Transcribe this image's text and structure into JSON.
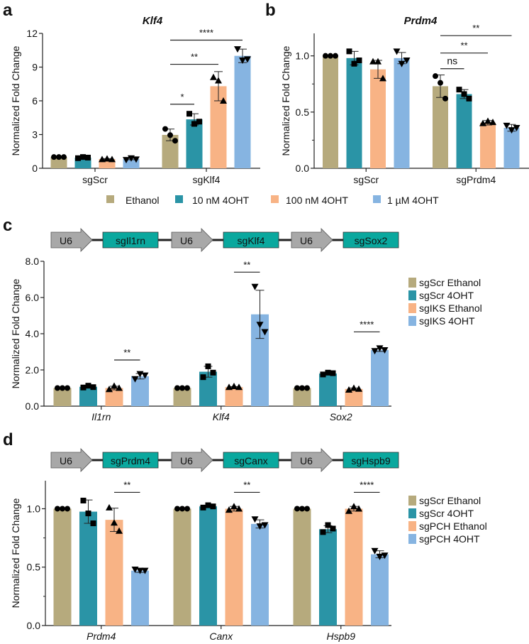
{
  "colors": {
    "c1": "#b6aa7d",
    "c2": "#2a94a6",
    "c3": "#f8b385",
    "c4": "#86b4e1",
    "construct_box": "#0aa89e",
    "construct_arrow": "#a8a8a8"
  },
  "top_legend": [
    "Ethanol",
    "10 nM 4OHT",
    "100 nM 4OHT",
    "1 µM 4OHT"
  ],
  "constructs": {
    "c": {
      "promoter": "U6",
      "guides": [
        "sgIl1rn",
        "sgKlf4",
        "sgSox2"
      ]
    },
    "d": {
      "promoter": "U6",
      "guides": [
        "sgPrdm4",
        "sgCanx",
        "sgHspb9"
      ]
    }
  },
  "chart_data": [
    {
      "panel": "a",
      "type": "bar",
      "title": "Klf4",
      "ylabel": "Normalized Fold Change",
      "xlabel": "",
      "ylim": [
        0,
        12
      ],
      "yticks": [
        "0",
        "3",
        "6",
        "9",
        "12"
      ],
      "ytick_values": [
        0,
        3,
        6,
        9,
        12
      ],
      "categories": [
        "sgScr",
        "sgKlf4"
      ],
      "categories_italic": false,
      "series": [
        {
          "name": "Ethanol",
          "color": "c1",
          "marker": "circle",
          "values": [
            1.0,
            2.97
          ],
          "errors": [
            0.0,
            0.52
          ],
          "points": [
            [
              1,
              1,
              1
            ],
            [
              3.5,
              2.95,
              2.45
            ]
          ]
        },
        {
          "name": "10 nM 4OHT",
          "color": "c2",
          "marker": "square",
          "values": [
            0.95,
            4.35
          ],
          "errors": [
            0.05,
            0.5
          ],
          "points": [
            [
              0.9,
              1.0,
              0.95
            ],
            [
              4.85,
              3.95,
              4.15
            ]
          ]
        },
        {
          "name": "100 nM 4OHT",
          "color": "c3",
          "marker": "triangle",
          "values": [
            0.82,
            7.3
          ],
          "errors": [
            0.04,
            1.3
          ],
          "points": [
            [
              0.8,
              0.85,
              0.8
            ],
            [
              8.1,
              7.8,
              6.0
            ]
          ]
        },
        {
          "name": "1 µM 4OHT",
          "color": "c4",
          "marker": "triangle-down",
          "values": [
            0.82,
            10.0
          ],
          "errors": [
            0.06,
            0.6
          ],
          "points": [
            [
              0.75,
              0.9,
              0.8
            ],
            [
              10.6,
              9.6,
              9.7
            ]
          ]
        }
      ],
      "significance": [
        {
          "group": 1,
          "from": 0,
          "to": 1,
          "y": 5.7,
          "label": "*"
        },
        {
          "group": 1,
          "from": 0,
          "to": 2,
          "y": 9.25,
          "label": "**"
        },
        {
          "group": 1,
          "from": 0,
          "to": 3,
          "y": 11.4,
          "label": "****"
        }
      ],
      "legend": "bottom (shared)"
    },
    {
      "panel": "b",
      "type": "bar",
      "title": "Prdm4",
      "ylabel": "Normalized Fold Change",
      "xlabel": "",
      "ylim": [
        0,
        1.2
      ],
      "yticks": [
        "0.0",
        "0.5",
        "1.0"
      ],
      "ytick_values": [
        0,
        0.5,
        1.0
      ],
      "categories": [
        "sgScr",
        "sgPrdm4"
      ],
      "categories_italic": false,
      "series": [
        {
          "name": "Ethanol",
          "color": "c1",
          "marker": "circle",
          "values": [
            1.0,
            0.73
          ],
          "errors": [
            0.0,
            0.1
          ],
          "points": [
            [
              1,
              1,
              1
            ],
            [
              0.82,
              0.76,
              0.62
            ]
          ]
        },
        {
          "name": "10 nM 4OHT",
          "color": "c2",
          "marker": "square",
          "values": [
            0.98,
            0.66
          ],
          "errors": [
            0.06,
            0.04
          ],
          "points": [
            [
              1.04,
              0.93,
              0.96
            ],
            [
              0.7,
              0.66,
              0.62
            ]
          ]
        },
        {
          "name": "100 nM 4OHT",
          "color": "c3",
          "marker": "triangle",
          "values": [
            0.88,
            0.405
          ],
          "errors": [
            0.08,
            0.02
          ],
          "points": [
            [
              0.95,
              0.95,
              0.8
            ],
            [
              0.4,
              0.42,
              0.41
            ]
          ]
        },
        {
          "name": "1 µM 4OHT",
          "color": "c4",
          "marker": "triangle-down",
          "values": [
            0.98,
            0.36
          ],
          "errors": [
            0.05,
            0.03
          ],
          "points": [
            [
              1.04,
              0.93,
              0.96
            ],
            [
              0.38,
              0.34,
              0.36
            ]
          ]
        }
      ],
      "significance": [
        {
          "group": 1,
          "from": 0,
          "to": 1,
          "y": 0.886,
          "label": "ns"
        },
        {
          "group": 1,
          "from": 0,
          "to": 2,
          "y": 1.025,
          "label": "**"
        },
        {
          "group": 1,
          "from": 0,
          "to": 3,
          "y": 1.18,
          "label": "**"
        }
      ],
      "legend": "bottom (shared)"
    },
    {
      "panel": "c",
      "type": "bar",
      "title": "",
      "ylabel": "Normalized Fold Change",
      "xlabel": "",
      "ylim": [
        0,
        8
      ],
      "yticks": [
        "0.0",
        "2.0",
        "4.0",
        "6.0",
        "8.0"
      ],
      "ytick_values": [
        0,
        2,
        4,
        6,
        8
      ],
      "categories": [
        "Il1rn",
        "Klf4",
        "Sox2"
      ],
      "categories_italic": true,
      "series": [
        {
          "name": "sgScr Ethanol",
          "color": "c1",
          "marker": "circle",
          "values": [
            1.0,
            1.0,
            1.0
          ],
          "errors": [
            0,
            0,
            0
          ],
          "points": [
            [
              1,
              1,
              1
            ],
            [
              1,
              1,
              1
            ],
            [
              1,
              1,
              1
            ]
          ]
        },
        {
          "name": "sgScr 4OHT",
          "color": "c2",
          "marker": "square",
          "values": [
            1.07,
            1.9,
            1.8
          ],
          "errors": [
            0.05,
            0.3,
            0.05
          ],
          "points": [
            [
              1.03,
              1.13,
              1.05
            ],
            [
              1.6,
              2.2,
              1.85
            ],
            [
              1.75,
              1.85,
              1.82
            ]
          ]
        },
        {
          "name": "sgIKS Ethanol",
          "color": "c3",
          "marker": "triangle",
          "values": [
            1.0,
            1.05,
            0.95
          ],
          "errors": [
            0.1,
            0.03,
            0.05
          ],
          "points": [
            [
              0.93,
              1.12,
              1.0
            ],
            [
              1.05,
              1.1,
              1.05
            ],
            [
              0.9,
              1.0,
              0.95
            ]
          ]
        },
        {
          "name": "sgIKS 4OHT",
          "color": "c4",
          "marker": "triangle-down",
          "values": [
            1.65,
            5.07,
            3.1
          ],
          "errors": [
            0.15,
            1.33,
            0.08
          ],
          "points": [
            [
              1.5,
              1.78,
              1.7
            ],
            [
              6.6,
              4.5,
              4.1
            ],
            [
              3.05,
              3.2,
              3.1
            ]
          ]
        }
      ],
      "significance": [
        {
          "group": 0,
          "from": 2,
          "to": 3,
          "y": 2.55,
          "label": "**"
        },
        {
          "group": 1,
          "from": 2,
          "to": 3,
          "y": 7.4,
          "label": "**"
        },
        {
          "group": 2,
          "from": 2,
          "to": 3,
          "y": 4.1,
          "label": "****"
        }
      ],
      "legend": "right"
    },
    {
      "panel": "d",
      "type": "bar",
      "title": "",
      "ylabel": "Normalized Fold Change",
      "xlabel": "",
      "ylim": [
        0,
        1.24
      ],
      "yticks": [
        "0.0",
        "0.5",
        "1.0"
      ],
      "ytick_values": [
        0,
        0.5,
        1.0
      ],
      "categories": [
        "Prdm4",
        "Canx",
        "Hspb9"
      ],
      "categories_italic": true,
      "series": [
        {
          "name": "sgScr Ethanol",
          "color": "c1",
          "marker": "circle",
          "values": [
            1.0,
            1.0,
            1.0
          ],
          "errors": [
            0,
            0,
            0
          ],
          "points": [
            [
              1,
              1,
              1
            ],
            [
              1,
              1,
              1
            ],
            [
              1,
              1,
              1
            ]
          ]
        },
        {
          "name": "sgScr 4OHT",
          "color": "c2",
          "marker": "square",
          "values": [
            0.975,
            1.02,
            0.825
          ],
          "errors": [
            0.1,
            0.01,
            0.03
          ],
          "points": [
            [
              1.07,
              0.96,
              0.875
            ],
            [
              1.01,
              1.03,
              1.02
            ],
            [
              0.8,
              0.86,
              0.83
            ]
          ]
        },
        {
          "name": "sgPCH Ethanol",
          "color": "c3",
          "marker": "triangle",
          "values": [
            0.905,
            1.0,
            1.0
          ],
          "errors": [
            0.1,
            0.02,
            0.02
          ],
          "points": [
            [
              1.01,
              0.88,
              0.81
            ],
            [
              0.99,
              1.02,
              1.0
            ],
            [
              0.98,
              1.02,
              1.0
            ]
          ]
        },
        {
          "name": "sgPCH 4OHT",
          "color": "c4",
          "marker": "triangle-down",
          "values": [
            0.47,
            0.87,
            0.61
          ],
          "errors": [
            0.015,
            0.035,
            0.03
          ],
          "points": [
            [
              0.48,
              0.47,
              0.47
            ],
            [
              0.91,
              0.85,
              0.86
            ],
            [
              0.64,
              0.59,
              0.6
            ]
          ]
        }
      ],
      "significance": [
        {
          "group": 0,
          "from": 2,
          "to": 3,
          "y": 1.14,
          "label": "**"
        },
        {
          "group": 1,
          "from": 2,
          "to": 3,
          "y": 1.14,
          "label": "**"
        },
        {
          "group": 2,
          "from": 2,
          "to": 3,
          "y": 1.14,
          "label": "****"
        }
      ],
      "legend": "right"
    }
  ]
}
